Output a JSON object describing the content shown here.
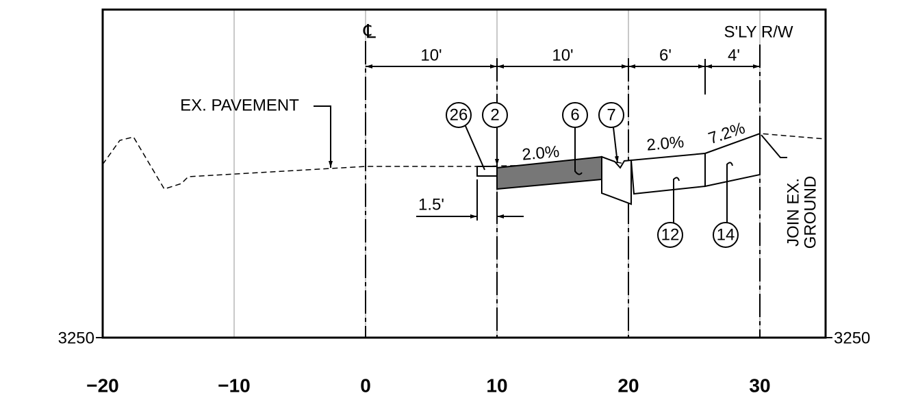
{
  "labels": {
    "centerline": "℄",
    "right_of_way": "S'LY R/W",
    "ex_pavement": "EX. PAVEMENT",
    "join_1": "JOIN EX.",
    "join_2": "GROUND"
  },
  "dimensions": [
    "10'",
    "10'",
    "6'",
    "4'",
    "1.5'"
  ],
  "callouts": [
    "26",
    "2",
    "6",
    "7",
    "12",
    "14"
  ],
  "slopes": [
    "2.0%",
    "2.0%",
    "7.2%"
  ],
  "elevation": "3250",
  "stations": [
    "−20",
    "−10",
    "0",
    "10",
    "20",
    "30"
  ]
}
